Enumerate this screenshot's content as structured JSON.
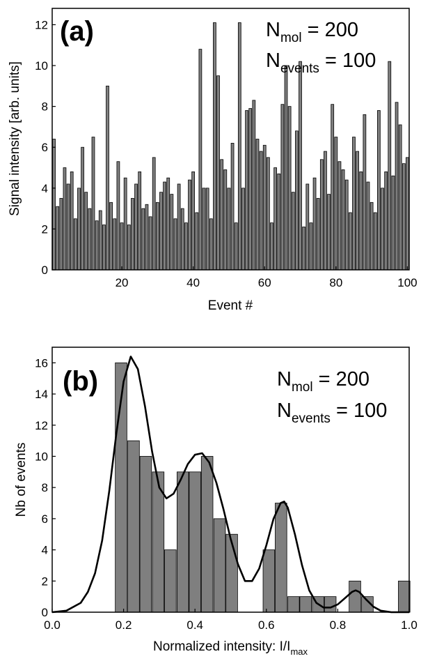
{
  "chart_data": [
    {
      "type": "bar",
      "panel_label": "(a)",
      "xlabel": "Event #",
      "ylabel": "Signal intensity [arb. units]",
      "xlim": [
        0.5,
        100.5
      ],
      "ylim": [
        0,
        12.8
      ],
      "xticks": [
        "20",
        "40",
        "60",
        "80",
        "100"
      ],
      "yticks": [
        "0",
        "2",
        "4",
        "6",
        "8",
        "10",
        "12"
      ],
      "annotation": {
        "line1": {
          "main": "N",
          "sub": "mol",
          "rest": " = 200"
        },
        "line2": {
          "main": "N",
          "sub": "events",
          "rest": " = 100"
        }
      },
      "bar_color": "#7f7f7f",
      "x": [
        1,
        2,
        3,
        4,
        5,
        6,
        7,
        8,
        9,
        10,
        11,
        12,
        13,
        14,
        15,
        16,
        17,
        18,
        19,
        20,
        21,
        22,
        23,
        24,
        25,
        26,
        27,
        28,
        29,
        30,
        31,
        32,
        33,
        34,
        35,
        36,
        37,
        38,
        39,
        40,
        41,
        42,
        43,
        44,
        45,
        46,
        47,
        48,
        49,
        50,
        51,
        52,
        53,
        54,
        55,
        56,
        57,
        58,
        59,
        60,
        61,
        62,
        63,
        64,
        65,
        66,
        67,
        68,
        69,
        70,
        71,
        72,
        73,
        74,
        75,
        76,
        77,
        78,
        79,
        80,
        81,
        82,
        83,
        84,
        85,
        86,
        87,
        88,
        89,
        90,
        91,
        92,
        93,
        94,
        95,
        96,
        97,
        98,
        99,
        100
      ],
      "values": [
        6.4,
        3.1,
        3.5,
        5.0,
        4.2,
        4.8,
        2.5,
        4.0,
        6.0,
        3.8,
        3.0,
        6.5,
        2.4,
        2.9,
        2.2,
        9.0,
        3.3,
        2.5,
        5.3,
        2.3,
        4.5,
        2.2,
        3.5,
        4.2,
        4.8,
        3.0,
        3.2,
        2.6,
        5.5,
        3.3,
        3.8,
        4.3,
        4.5,
        3.7,
        2.5,
        4.2,
        3.0,
        2.3,
        4.4,
        4.8,
        2.8,
        10.8,
        4.0,
        4.0,
        2.5,
        12.1,
        9.5,
        5.4,
        4.9,
        4.0,
        6.2,
        2.3,
        12.1,
        4.0,
        7.8,
        7.9,
        8.3,
        6.4,
        5.8,
        6.1,
        5.5,
        2.3,
        5.0,
        4.7,
        8.1,
        10.0,
        8.0,
        3.8,
        6.8,
        10.2,
        2.1,
        4.2,
        2.3,
        4.5,
        3.5,
        5.4,
        5.8,
        3.7,
        8.1,
        6.5,
        5.3,
        4.9,
        4.4,
        2.8,
        6.5,
        5.8,
        4.8,
        7.6,
        4.3,
        3.3,
        2.8,
        7.8,
        4.0,
        4.8,
        10.2,
        4.6,
        8.2,
        7.1,
        5.2,
        5.5
      ]
    },
    {
      "type": "bar",
      "panel_label": "(b)",
      "xlabel": {
        "main": "Normalized intensity: I/I",
        "sub": "max"
      },
      "ylabel": "Nb of events",
      "xlim": [
        0.0,
        1.0
      ],
      "ylim": [
        0,
        17
      ],
      "xticks": [
        "0.0",
        "0.2",
        "0.4",
        "0.6",
        "0.8",
        "1.0"
      ],
      "yticks": [
        "0",
        "2",
        "4",
        "6",
        "8",
        "10",
        "12",
        "14",
        "16"
      ],
      "annotation": {
        "line1": {
          "main": "N",
          "sub": "mol",
          "rest": " = 200"
        },
        "line2": {
          "main": "N",
          "sub": "events",
          "rest": " = 100"
        }
      },
      "bar_color": "#7f7f7f",
      "bar_width": 0.0345,
      "x": [
        0.193,
        0.228,
        0.262,
        0.297,
        0.331,
        0.366,
        0.4,
        0.434,
        0.469,
        0.503,
        0.607,
        0.641,
        0.676,
        0.71,
        0.745,
        0.779,
        0.848,
        0.883,
        0.986
      ],
      "values": [
        16,
        11,
        10,
        9,
        4,
        9,
        9,
        10,
        6,
        5,
        4,
        7,
        1,
        1,
        1,
        1,
        2,
        1,
        2
      ],
      "fit_curve": {
        "x": [
          0.0,
          0.04,
          0.08,
          0.1,
          0.12,
          0.14,
          0.16,
          0.18,
          0.2,
          0.22,
          0.24,
          0.26,
          0.28,
          0.3,
          0.32,
          0.34,
          0.36,
          0.38,
          0.4,
          0.42,
          0.44,
          0.46,
          0.48,
          0.5,
          0.52,
          0.54,
          0.56,
          0.58,
          0.6,
          0.62,
          0.64,
          0.65,
          0.66,
          0.68,
          0.7,
          0.72,
          0.74,
          0.76,
          0.78,
          0.8,
          0.82,
          0.84,
          0.85,
          0.86,
          0.88,
          0.9,
          0.92,
          0.95,
          1.0
        ],
        "y": [
          0.0,
          0.1,
          0.6,
          1.3,
          2.5,
          4.6,
          7.8,
          11.5,
          14.8,
          16.4,
          15.6,
          13.2,
          10.3,
          8.0,
          7.3,
          7.6,
          8.5,
          9.5,
          10.1,
          10.2,
          9.6,
          8.3,
          6.6,
          4.7,
          3.1,
          2.0,
          2.0,
          2.8,
          4.3,
          6.0,
          7.0,
          7.1,
          6.7,
          5.0,
          3.0,
          1.4,
          0.6,
          0.3,
          0.3,
          0.5,
          0.9,
          1.3,
          1.4,
          1.3,
          0.8,
          0.35,
          0.1,
          0.0,
          0.0
        ]
      }
    }
  ]
}
